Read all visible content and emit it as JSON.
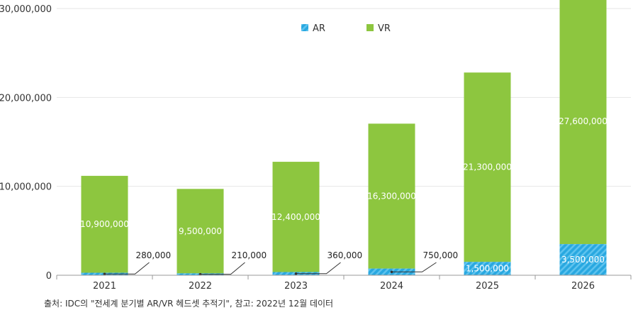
{
  "chart_data": {
    "type": "bar",
    "stacked": true,
    "categories": [
      "2021",
      "2022",
      "2023",
      "2024",
      "2025",
      "2026"
    ],
    "series": [
      {
        "name": "AR",
        "values": [
          280000,
          210000,
          360000,
          750000,
          1500000,
          3500000
        ],
        "color": "#29a8e0",
        "pattern": "diagonal-stripes"
      },
      {
        "name": "VR",
        "values": [
          10900000,
          9500000,
          12400000,
          16300000,
          21300000,
          27600000
        ],
        "color": "#8dc63f"
      }
    ],
    "data_labels": {
      "AR": [
        "280,000",
        "210,000",
        "360,000",
        "750,000",
        "1,500,000",
        "3,500,000"
      ],
      "VR": [
        "10,900,000",
        "9,500,000",
        "12,400,000",
        "16,300,000",
        "21,300,000",
        "27,600,000"
      ]
    },
    "ylim": [
      0,
      30000000
    ],
    "yticks": [
      0,
      10000000,
      20000000,
      30000000
    ],
    "ytick_labels": [
      "0",
      "10,000,000",
      "20,000,000",
      "30,000,000"
    ],
    "grid": true,
    "legend": "top-center",
    "xlabel": "",
    "ylabel": ""
  },
  "source": "출처: IDC의 \"전세계 분기별 AR/VR 헤드셋 추적기\", 참고: 2022년 12월 데이터"
}
